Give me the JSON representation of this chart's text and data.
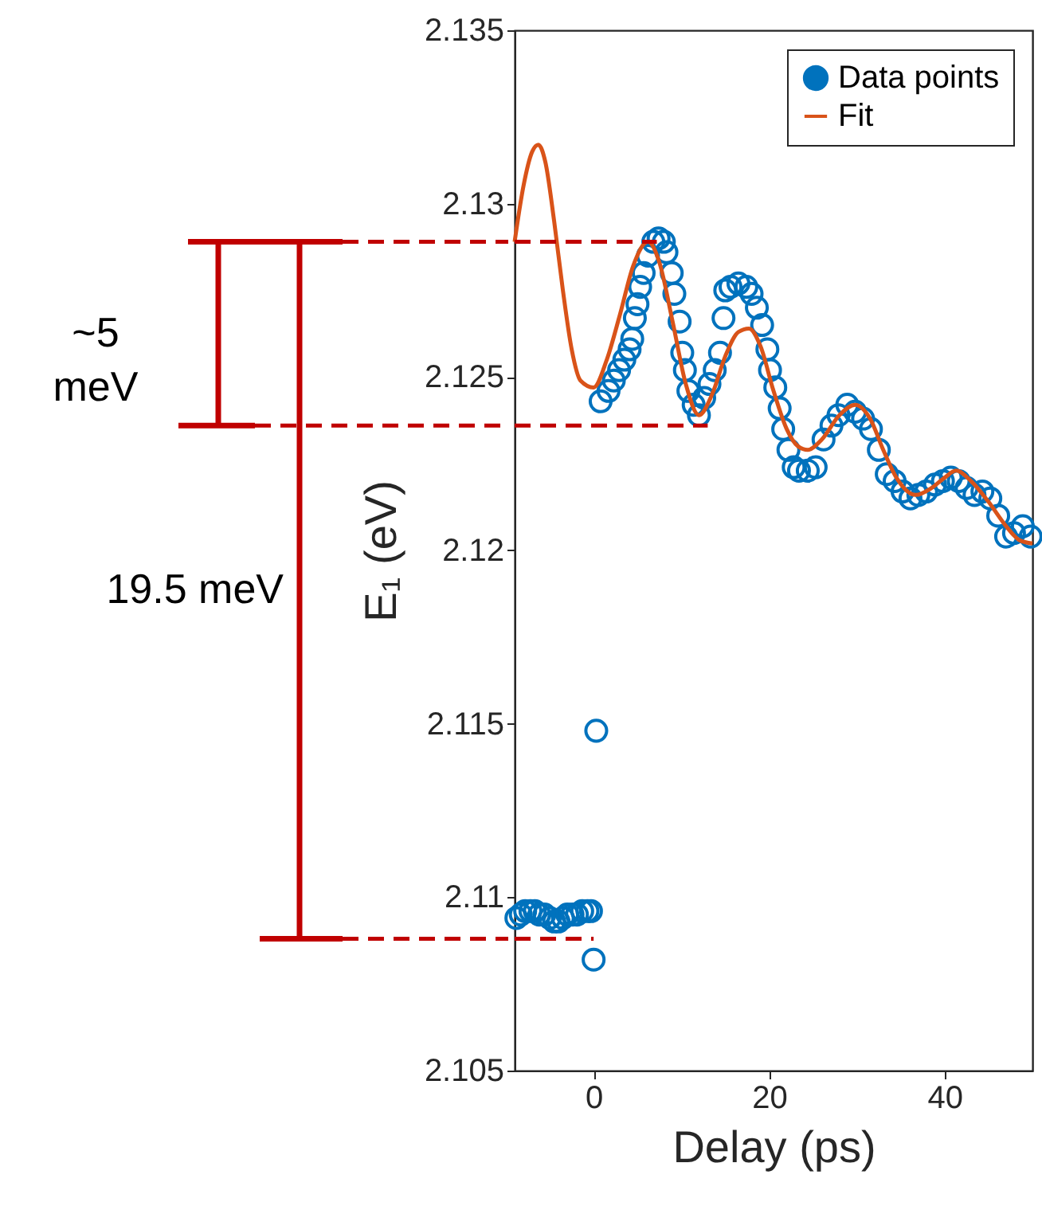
{
  "chart_data": {
    "type": "scatter",
    "xlabel": "Delay (ps)",
    "ylabel": "E₁ (eV)",
    "xlim": [
      -9,
      50
    ],
    "xticks": [
      0,
      20,
      40
    ],
    "ylim": [
      2.105,
      2.135
    ],
    "yticks": [
      2.105,
      2.11,
      2.115,
      2.12,
      2.125,
      2.13,
      2.135
    ],
    "grid": false,
    "legend": "top right",
    "annotations": [
      "~5 meV",
      "19.5 meV"
    ],
    "series": [
      {
        "name": "Data points",
        "marker": "circle",
        "color": "#0072bd",
        "x": [
          -8.8,
          -8.3,
          -7.8,
          -7.2,
          -6.7,
          -6.2,
          -5.6,
          -5.0,
          -4.5,
          -4.0,
          -3.5,
          -3.0,
          -2.4,
          -1.9,
          -1.3,
          -0.7,
          -0.3,
          0,
          0.3,
          0.8,
          1.7,
          2.3,
          2.9,
          3.5,
          4.1,
          4.4,
          4.7,
          5.0,
          5.3,
          5.7,
          6.2,
          6.8,
          7.4,
          8.0,
          8.3,
          8.9,
          9.2,
          9.8,
          10.1,
          10.4,
          10.8,
          11.4,
          12.0,
          12.6,
          13.2,
          13.8,
          14.4,
          14.8,
          15.0,
          15.6,
          16.5,
          17.4,
          18.0,
          18.6,
          19.2,
          19.8,
          20.1,
          20.7,
          21.2,
          21.6,
          22.2,
          22.8,
          23.4,
          24.4,
          25.3,
          26.2,
          27.1,
          27.9,
          28.9,
          29.8,
          30.7,
          31.6,
          32.5,
          33.4,
          34.3,
          35.2,
          36.1,
          37.0,
          37.9,
          38.9,
          39.8,
          40.7,
          41.6,
          42.5,
          43.4,
          44.3,
          45.2,
          46.1,
          47.0,
          47.9,
          48.9,
          49.8
        ],
        "values": [
          2.1094,
          2.1095,
          2.1096,
          2.1096,
          2.1096,
          2.1095,
          2.1095,
          2.1094,
          2.1093,
          2.1093,
          2.1094,
          2.1095,
          2.1095,
          2.1095,
          2.1096,
          2.1096,
          2.1096,
          2.1082,
          2.1148,
          2.1243,
          2.1246,
          2.1249,
          2.1252,
          2.1255,
          2.1258,
          2.1261,
          2.1267,
          2.1271,
          2.1276,
          2.128,
          2.1285,
          2.1289,
          2.129,
          2.1289,
          2.1286,
          2.128,
          2.1274,
          2.1266,
          2.1257,
          2.1252,
          2.1246,
          2.1242,
          2.1239,
          2.1244,
          2.1248,
          2.1252,
          2.1257,
          2.1267,
          2.1275,
          2.1276,
          2.1277,
          2.1276,
          2.1274,
          2.127,
          2.1265,
          2.1258,
          2.1252,
          2.1247,
          2.1241,
          2.1235,
          2.1229,
          2.1224,
          2.1223,
          2.1223,
          2.1224,
          2.1232,
          2.1236,
          2.1239,
          2.1242,
          2.124,
          2.1238,
          2.1235,
          2.1229,
          2.1222,
          2.122,
          2.1217,
          2.1215,
          2.1216,
          2.1217,
          2.1219,
          2.122,
          2.1221,
          2.122,
          2.1218,
          2.1216,
          2.1217,
          2.1215,
          2.121,
          2.1204,
          2.1205,
          2.1207,
          2.1204
        ]
      },
      {
        "name": "Fit",
        "type": "line",
        "color": "#d95319",
        "x": [
          -9,
          -8,
          -7,
          -6.3,
          -5.5,
          -4.5,
          -3.5,
          -2.5,
          -1.5,
          0,
          1.5,
          3,
          4.5,
          6.2,
          7.5,
          9,
          10.5,
          12,
          13.5,
          15,
          16.5,
          17.7,
          19,
          20.5,
          22,
          23.3,
          24.4,
          26,
          28,
          29.8,
          31.5,
          33,
          34.5,
          36.7,
          38.5,
          40,
          41.3,
          43,
          45,
          47,
          48.5,
          50
        ],
        "values": [
          2.1289,
          2.1305,
          2.1315,
          2.1317,
          2.1312,
          2.1295,
          2.1275,
          2.1258,
          2.1249,
          2.1247,
          2.1255,
          2.1268,
          2.1282,
          2.1289,
          2.1283,
          2.1266,
          2.1248,
          2.1239,
          2.1245,
          2.1256,
          2.1263,
          2.1264,
          2.1259,
          2.1246,
          2.1235,
          2.123,
          2.1229,
          2.1232,
          2.1239,
          2.1242,
          2.1238,
          2.1229,
          2.1221,
          2.1216,
          2.1218,
          2.1221,
          2.1223,
          2.122,
          2.1214,
          2.1207,
          2.1203,
          2.1202
        ]
      },
      {
        "type": "line",
        "color": "#c00000",
        "line_style": "dashed",
        "x": [
          -9,
          7.2
        ],
        "values": [
          2.1289,
          2.1289
        ]
      },
      {
        "type": "line",
        "color": "#c00000",
        "line_style": "dashed",
        "x": [
          -9,
          13
        ],
        "values": [
          2.1236,
          2.1236
        ]
      },
      {
        "type": "line",
        "color": "#c00000",
        "line_style": "dashed",
        "x": [
          -9,
          0
        ],
        "values": [
          2.1088,
          2.1088
        ]
      }
    ]
  }
}
